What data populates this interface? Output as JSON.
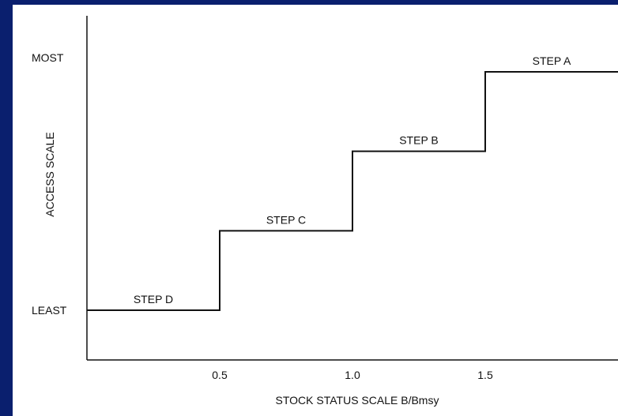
{
  "chart_data": {
    "type": "line",
    "step": true,
    "xlabel": "STOCK STATUS SCALE B/Bmsy",
    "ylabel": "ACCESS SCALE",
    "xticks": [
      "0.5",
      "1.0",
      "1.5"
    ],
    "yticks": [
      "LEAST",
      "MOST"
    ],
    "xlim": [
      0,
      2.0
    ],
    "ylim": [
      0,
      1
    ],
    "x": [
      0,
      0.5,
      0.5,
      1.0,
      1.0,
      1.5,
      1.5,
      2.0
    ],
    "y": [
      0,
      0,
      0.333,
      0.333,
      0.667,
      0.667,
      1,
      1
    ],
    "annotations": [
      {
        "text": "STEP D",
        "x": 0.25,
        "y": 0
      },
      {
        "text": "STEP C",
        "x": 0.75,
        "y": 0.333
      },
      {
        "text": "STEP B",
        "x": 1.25,
        "y": 0.667
      },
      {
        "text": "STEP A",
        "x": 1.75,
        "y": 1
      }
    ],
    "grid": false,
    "colors": {
      "line": "#111111",
      "border": "#0a1f6e"
    }
  }
}
